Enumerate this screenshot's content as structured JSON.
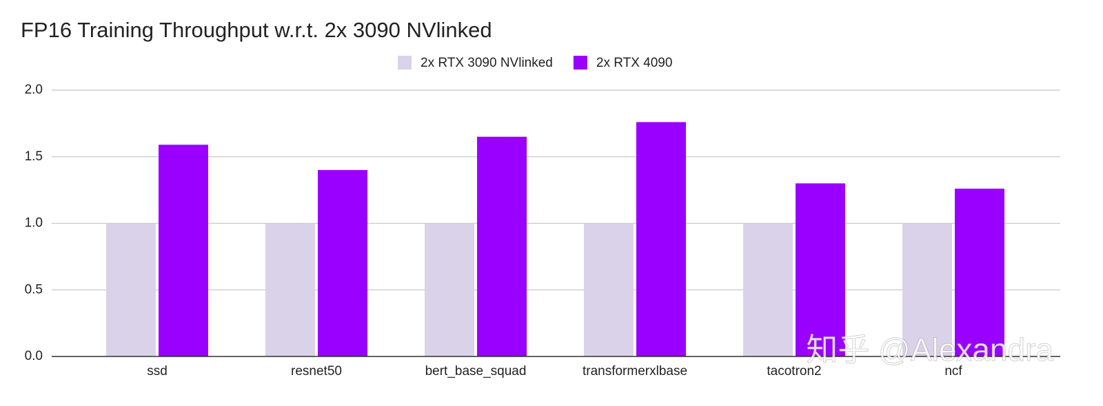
{
  "chart_data": {
    "type": "bar",
    "title": "FP16 Training Throughput w.r.t. 2x 3090 NVlinked",
    "categories": [
      "ssd",
      "resnet50",
      "bert_base_squad",
      "transformerxlbase",
      "tacotron2",
      "ncf"
    ],
    "series": [
      {
        "name": "2x RTX 3090 NVlinked",
        "color": "#d9d2e9",
        "values": [
          1,
          1,
          1,
          1,
          1,
          1
        ]
      },
      {
        "name": "2x RTX 4090",
        "color": "#9900ff",
        "values": [
          1.59,
          1.4,
          1.65,
          1.76,
          1.3,
          1.26
        ]
      }
    ],
    "ylim": [
      0,
      2
    ],
    "yticks": [
      {
        "value": 0,
        "label": "0.0"
      },
      0.5,
      {
        "value": 1,
        "label": "1.0"
      },
      1.5,
      {
        "value": 2,
        "label": "2.0"
      }
    ],
    "grid": true,
    "legend": "top",
    "watermark": "知乎 @Alexandra"
  }
}
